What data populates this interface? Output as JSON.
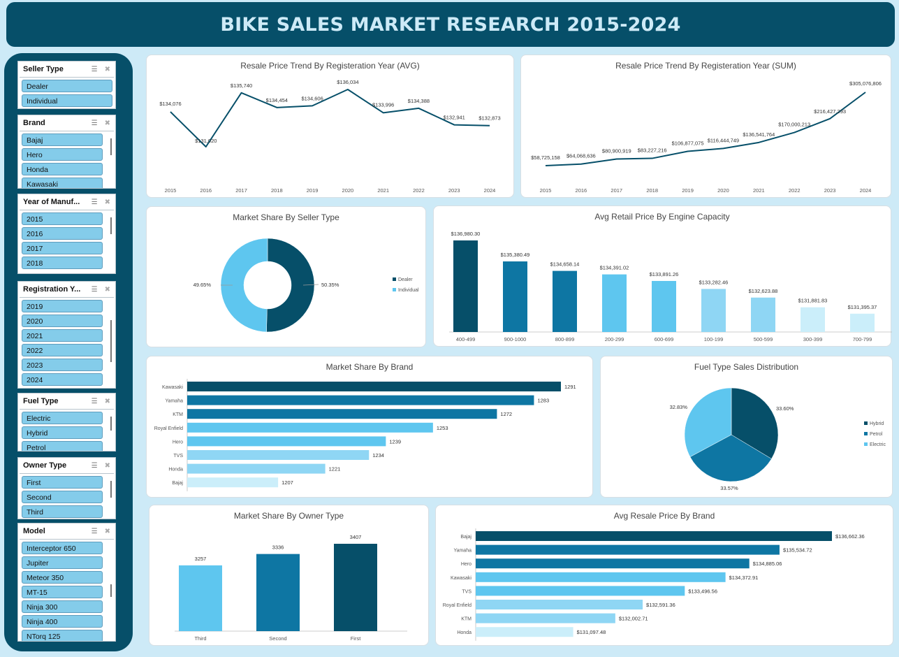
{
  "header": {
    "title": "BIKE SALES MARKET RESEARCH 2015-2024"
  },
  "slicers": [
    {
      "title": "Seller Type",
      "items": [
        "Dealer",
        "Individual"
      ]
    },
    {
      "title": "Brand",
      "items": [
        "Bajaj",
        "Hero",
        "Honda",
        "Kawasaki"
      ]
    },
    {
      "title": "Year of Manuf...",
      "items": [
        "2015",
        "2016",
        "2017",
        "2018"
      ]
    },
    {
      "title": "Registration Y...",
      "items": [
        "2019",
        "2020",
        "2021",
        "2022",
        "2023",
        "2024"
      ]
    },
    {
      "title": "Fuel Type",
      "items": [
        "Electric",
        "Hybrid",
        "Petrol"
      ]
    },
    {
      "title": "Owner Type",
      "items": [
        "First",
        "Second",
        "Third"
      ]
    },
    {
      "title": "Model",
      "items": [
        "Interceptor 650",
        "Jupiter",
        "Meteor 350",
        "MT-15",
        "Ninja 300",
        "Ninja 400",
        "NTorq 125"
      ]
    }
  ],
  "colors": {
    "c1": "#064f69",
    "c2": "#0e76a3",
    "c3": "#5ec6ef",
    "c4": "#8fd6f4",
    "c5": "#cbeefa",
    "banner": "#064f69",
    "background": "#cdeaf7"
  },
  "chart_data": [
    {
      "id": "avg-trend",
      "type": "line",
      "title": "Resale Price Trend By Registeration Year (AVG)",
      "x": [
        "2015",
        "2016",
        "2017",
        "2018",
        "2019",
        "2020",
        "2021",
        "2022",
        "2023",
        "2024"
      ],
      "values": [
        134076,
        131020,
        135740,
        134454,
        134606,
        136034,
        133996,
        134388,
        132941,
        132873
      ],
      "labels": [
        "$134,076",
        "$131,020",
        "$135,740",
        "$134,454",
        "$134,606",
        "$136,034",
        "$133,996",
        "$134,388",
        "$132,941",
        "$132,873"
      ]
    },
    {
      "id": "sum-trend",
      "type": "line",
      "title": "Resale Price Trend By Registeration Year (SUM)",
      "x": [
        "2015",
        "2016",
        "2017",
        "2018",
        "2019",
        "2020",
        "2021",
        "2022",
        "2023",
        "2024"
      ],
      "values": [
        58725158,
        64068636,
        80900919,
        83227216,
        106877075,
        116444749,
        136541764,
        170000213,
        216427293,
        305076806
      ],
      "labels": [
        "$58,725,158",
        "$64,068,636",
        "$80,900,919",
        "$83,227,216",
        "$106,877,075",
        "$116,444,749",
        "$136,541,764",
        "$170,000,213",
        "$216,427,293",
        "$305,076,806"
      ]
    },
    {
      "id": "seller-share",
      "type": "pie",
      "title": "Market Share By Seller Type",
      "categories": [
        "Dealer",
        "Individual"
      ],
      "values": [
        50.35,
        49.65
      ],
      "labels": [
        "50.35%",
        "49.65%"
      ]
    },
    {
      "id": "engine-capacity",
      "type": "bar",
      "title": "Avg Retail Price By Engine Capacity",
      "categories": [
        "400-499",
        "900-1000",
        "800-899",
        "200-299",
        "600-699",
        "100-199",
        "500-599",
        "300-399",
        "700-799"
      ],
      "values": [
        136980.3,
        135380.49,
        134658.14,
        134391.02,
        133891.26,
        133282.46,
        132623.88,
        131881.83,
        131395.37
      ],
      "labels": [
        "$136,980.30",
        "$135,380.49",
        "$134,658.14",
        "$134,391.02",
        "$133,891.26",
        "$133,282.46",
        "$132,623.88",
        "$131,881.83",
        "$131,395.37"
      ]
    },
    {
      "id": "brand-share",
      "type": "bar",
      "orientation": "horizontal",
      "title": "Market Share By Brand",
      "categories": [
        "Kawasaki",
        "Yamaha",
        "KTM",
        "Royal Enfield",
        "Hero",
        "TVS",
        "Honda",
        "Bajaj"
      ],
      "values": [
        1291,
        1283,
        1272,
        1253,
        1239,
        1234,
        1221,
        1207
      ],
      "labels": [
        "1291",
        "1283",
        "1272",
        "1253",
        "1239",
        "1234",
        "1221",
        "1207"
      ]
    },
    {
      "id": "fuel-dist",
      "type": "pie",
      "title": "Fuel Type Sales Distribution",
      "categories": [
        "Hybrid",
        "Petrol",
        "Electric"
      ],
      "values": [
        33.6,
        33.57,
        32.83
      ],
      "labels": [
        "33.60%",
        "33.57%",
        "32.83%"
      ]
    },
    {
      "id": "owner-share",
      "type": "bar",
      "title": "Market Share By Owner Type",
      "categories": [
        "Third",
        "Second",
        "First"
      ],
      "values": [
        3257,
        3336,
        3407
      ],
      "labels": [
        "3257",
        "3336",
        "3407"
      ]
    },
    {
      "id": "brand-price",
      "type": "bar",
      "orientation": "horizontal",
      "title": "Avg Resale Price By Brand",
      "categories": [
        "Bajaj",
        "Yamaha",
        "Hero",
        "Kawasaki",
        "TVS",
        "Royal Enfield",
        "KTM",
        "Honda"
      ],
      "values": [
        136662.36,
        135534.72,
        134885.06,
        134372.91,
        133496.56,
        132591.36,
        132002.71,
        131097.48
      ],
      "labels": [
        "$136,662.36",
        "$135,534.72",
        "$134,885.06",
        "$134,372.91",
        "$133,496.56",
        "$132,591.36",
        "$132,002.71",
        "$131,097.48"
      ]
    }
  ]
}
